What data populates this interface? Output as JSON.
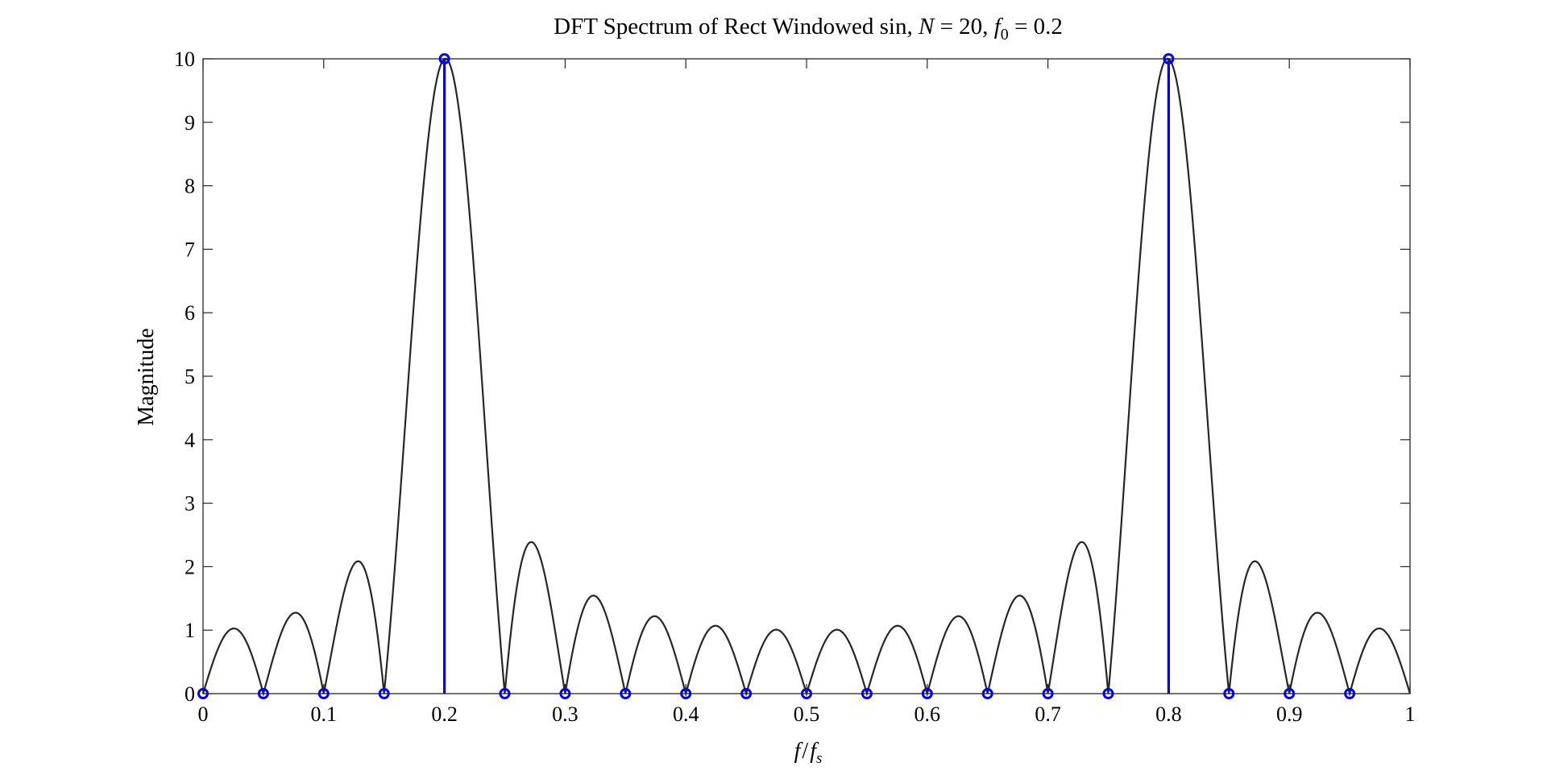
{
  "chart_data": {
    "type": "stem",
    "title_parts": {
      "prefix": "DFT Spectrum of Rect Windowed sin, ",
      "N_symbol": "N",
      "N_eq": " = 20, ",
      "f_symbol": "f",
      "f_sub": "0",
      "f_eq": " = 0.2"
    },
    "xlabel_parts": {
      "f": "f",
      "slash": "/",
      "fs": "f",
      "fs_sub": "s"
    },
    "ylabel": "Magnitude",
    "xlim": [
      0,
      1
    ],
    "ylim": [
      0,
      10
    ],
    "xticks": [
      0,
      0.1,
      0.2,
      0.3,
      0.4,
      0.5,
      0.6,
      0.7,
      0.8,
      0.9,
      1
    ],
    "xtick_labels": [
      "0",
      "0.1",
      "0.2",
      "0.3",
      "0.4",
      "0.5",
      "0.6",
      "0.7",
      "0.8",
      "0.9",
      "1"
    ],
    "yticks": [
      0,
      1,
      2,
      3,
      4,
      5,
      6,
      7,
      8,
      9,
      10
    ],
    "ytick_labels": [
      "0",
      "1",
      "2",
      "3",
      "4",
      "5",
      "6",
      "7",
      "8",
      "9",
      "10"
    ],
    "grid": false,
    "box": true,
    "series": [
      {
        "kind": "continuous",
        "color": "#262626",
        "N": 20,
        "f0": 0.2,
        "samples": 801,
        "peak_value": 10
      },
      {
        "kind": "stem",
        "color": "#0000ff",
        "x": [
          0,
          0.05,
          0.1,
          0.15,
          0.2,
          0.25,
          0.3,
          0.35,
          0.4,
          0.45,
          0.5,
          0.55,
          0.6,
          0.65,
          0.7,
          0.75,
          0.8,
          0.85,
          0.9,
          0.95
        ],
        "y": [
          0,
          0,
          0,
          0,
          10,
          0,
          0,
          0,
          0,
          0,
          0,
          0,
          0,
          0,
          0,
          0,
          10,
          0,
          0,
          0
        ]
      }
    ]
  }
}
